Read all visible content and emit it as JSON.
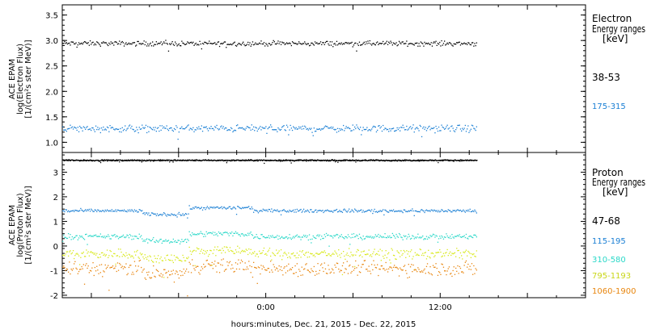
{
  "chart_data": [
    {
      "type": "scatter",
      "ylabel_lines": [
        "ACE EPAM",
        "log(Electron Flux)",
        "[1/(cm²s ster MeV)]"
      ],
      "ylim": [
        0.8,
        3.7
      ],
      "yticks": [
        "1.0",
        "1.5",
        "2.0",
        "2.5",
        "3.0",
        "3.5"
      ],
      "ytick_values": [
        1.0,
        1.5,
        2.0,
        2.5,
        3.0,
        3.5
      ],
      "legend": {
        "title_lines": [
          "Electron",
          "Energy ranges",
          "[keV]"
        ],
        "placement": "right"
      },
      "series": [
        {
          "name": "38-53",
          "color": "#000000",
          "level": 2.95,
          "noise": 0.035
        },
        {
          "name": "175-315",
          "color": "#1a7fd4",
          "level": 1.28,
          "noise": 0.05
        }
      ]
    },
    {
      "type": "scatter",
      "ylabel_lines": [
        "ACE EPAM",
        "log(Proton Flux)",
        "[1/(cm²s ster MeV)]"
      ],
      "ylim": [
        -2.1,
        3.8
      ],
      "yticks": [
        "-2",
        "-1",
        "0",
        "1",
        "2",
        "3"
      ],
      "ytick_values": [
        -2,
        -1,
        0,
        1,
        2,
        3
      ],
      "legend": {
        "title_lines": [
          "Proton",
          "Energy ranges",
          "[keV]"
        ],
        "placement": "right"
      },
      "series": [
        {
          "name": "47-68",
          "color": "#000000",
          "level": 3.5,
          "noise": 0.02
        },
        {
          "name": "115-195",
          "color": "#1a7fd4",
          "level": 1.45,
          "noise": 0.05
        },
        {
          "name": "310-580",
          "color": "#2ad8c8",
          "level": 0.4,
          "noise": 0.08
        },
        {
          "name": "795-1193",
          "color": "#d8e81a",
          "level": -0.3,
          "noise": 0.15
        },
        {
          "name": "1060-1900",
          "color": "#e8860f",
          "level": -0.9,
          "noise": 0.22
        }
      ]
    }
  ],
  "x_axis": {
    "label": "hours:minutes, Dec. 21, 2015 - Dec. 22, 2015",
    "ticks": [
      "0:00",
      "12:00"
    ],
    "tick_hours": [
      0,
      12
    ],
    "range_hours": [
      -14,
      22
    ],
    "data_end_hours": 14.5
  }
}
